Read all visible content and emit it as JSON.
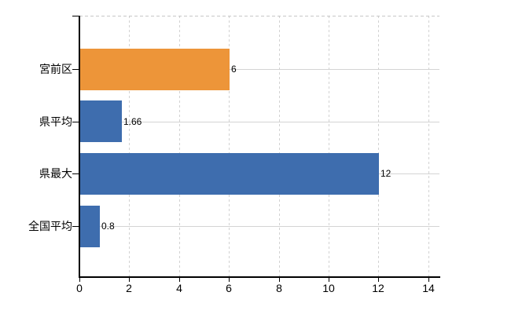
{
  "chart_data": {
    "type": "bar",
    "orientation": "horizontal",
    "title": "",
    "categories": [
      "宮前区",
      "県平均",
      "県最大",
      "全国平均"
    ],
    "values": [
      6,
      1.66,
      12,
      0.8
    ],
    "value_labels": [
      "6",
      "1.66",
      "12",
      "0.8"
    ],
    "series": [
      {
        "name": "値",
        "values": [
          6,
          1.66,
          12,
          0.8
        ]
      }
    ],
    "bar_colors": [
      "#ed9539",
      "#3e6dae",
      "#3e6dae",
      "#3e6dae"
    ],
    "x_ticks": [
      "0",
      "2",
      "4",
      "6",
      "8",
      "10",
      "12",
      "14"
    ],
    "x_tick_values": [
      0,
      2,
      4,
      6,
      8,
      10,
      12,
      14
    ],
    "xlim": [
      0,
      14.4
    ],
    "xlabel": "",
    "ylabel": "",
    "grid": true,
    "legend_position": "none"
  },
  "colors": {
    "bar_orange": "#ed9539",
    "bar_blue": "#3e6dae",
    "gridline": "#d4d4d4",
    "plot_border_dashed": "#c6c6c6",
    "axis": "#000000",
    "text": "#000000",
    "background": "#ffffff"
  }
}
